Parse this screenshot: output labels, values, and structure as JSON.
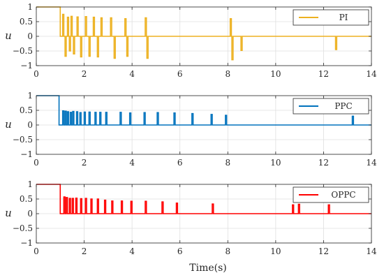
{
  "chart_data": [
    {
      "type": "line",
      "ylabel": "u",
      "xlabel": "",
      "xlim": [
        0,
        14
      ],
      "ylim": [
        -1,
        1
      ],
      "xticks": [
        "0",
        "2",
        "4",
        "6",
        "8",
        "10",
        "12",
        "14"
      ],
      "yticks": [
        "1",
        "0.5",
        "0",
        "−0.5",
        "−1"
      ],
      "grid": true,
      "legend_position": "top-right",
      "series": [
        {
          "name": "PI",
          "color": "#EDB120",
          "initial": {
            "x": [
              0,
              1.0
            ],
            "y": 1
          },
          "baseline": 0,
          "pulses": [
            {
              "x": 1.1,
              "y": 0.75
            },
            {
              "x": 1.2,
              "y": -0.68
            },
            {
              "x": 1.3,
              "y": 0.65
            },
            {
              "x": 1.38,
              "y": -0.5
            },
            {
              "x": 1.45,
              "y": 0.68
            },
            {
              "x": 1.55,
              "y": -0.6
            },
            {
              "x": 1.7,
              "y": 0.66
            },
            {
              "x": 1.85,
              "y": -0.7
            },
            {
              "x": 2.05,
              "y": 0.67
            },
            {
              "x": 2.2,
              "y": -0.68
            },
            {
              "x": 2.38,
              "y": 0.65
            },
            {
              "x": 2.55,
              "y": -0.7
            },
            {
              "x": 2.7,
              "y": 0.63
            },
            {
              "x": 3.1,
              "y": 0.63
            },
            {
              "x": 3.25,
              "y": -0.75
            },
            {
              "x": 3.7,
              "y": 0.6
            },
            {
              "x": 3.78,
              "y": -0.68
            },
            {
              "x": 4.55,
              "y": 0.63
            },
            {
              "x": 4.62,
              "y": -0.75
            },
            {
              "x": 8.1,
              "y": 0.6
            },
            {
              "x": 8.17,
              "y": -0.8
            },
            {
              "x": 8.55,
              "y": -0.48
            },
            {
              "x": 12.5,
              "y": -0.45
            }
          ]
        },
        {
          "name": "PPC",
          "color": "#0072BD",
          "initial": {
            "x": [
              0,
              0.95
            ],
            "y": 1
          },
          "baseline": 0,
          "pulses": [
            {
              "x": 1.1,
              "y": 0.48
            },
            {
              "x": 1.2,
              "y": 0.47
            },
            {
              "x": 1.3,
              "y": 0.45
            },
            {
              "x": 1.42,
              "y": 0.43
            },
            {
              "x": 1.52,
              "y": 0.46
            },
            {
              "x": 1.68,
              "y": 0.45
            },
            {
              "x": 1.82,
              "y": 0.42
            },
            {
              "x": 2.0,
              "y": 0.44
            },
            {
              "x": 2.2,
              "y": 0.44
            },
            {
              "x": 2.45,
              "y": 0.43
            },
            {
              "x": 2.65,
              "y": 0.43
            },
            {
              "x": 2.9,
              "y": 0.43
            },
            {
              "x": 3.5,
              "y": 0.43
            },
            {
              "x": 3.9,
              "y": 0.41
            },
            {
              "x": 4.5,
              "y": 0.42
            },
            {
              "x": 5.05,
              "y": 0.42
            },
            {
              "x": 5.75,
              "y": 0.41
            },
            {
              "x": 6.5,
              "y": 0.39
            },
            {
              "x": 7.3,
              "y": 0.36
            },
            {
              "x": 7.9,
              "y": 0.33
            },
            {
              "x": 13.2,
              "y": 0.3
            }
          ]
        },
        {
          "name": "OPPC",
          "color": "#FF0000",
          "initial": {
            "x": [
              0,
              1.0
            ],
            "y": 1
          },
          "baseline": 0,
          "pulses": [
            {
              "x": 1.15,
              "y": 0.57
            },
            {
              "x": 1.25,
              "y": 0.55
            },
            {
              "x": 1.38,
              "y": 0.52
            },
            {
              "x": 1.5,
              "y": 0.52
            },
            {
              "x": 1.65,
              "y": 0.53
            },
            {
              "x": 1.85,
              "y": 0.51
            },
            {
              "x": 2.05,
              "y": 0.52
            },
            {
              "x": 2.28,
              "y": 0.5
            },
            {
              "x": 2.55,
              "y": 0.5
            },
            {
              "x": 2.85,
              "y": 0.46
            },
            {
              "x": 3.15,
              "y": 0.43
            },
            {
              "x": 3.55,
              "y": 0.43
            },
            {
              "x": 3.95,
              "y": 0.42
            },
            {
              "x": 4.55,
              "y": 0.42
            },
            {
              "x": 5.25,
              "y": 0.4
            },
            {
              "x": 5.85,
              "y": 0.36
            },
            {
              "x": 7.35,
              "y": 0.33
            },
            {
              "x": 10.7,
              "y": 0.3
            },
            {
              "x": 10.95,
              "y": 0.32
            },
            {
              "x": 12.2,
              "y": 0.3
            }
          ]
        }
      ]
    }
  ],
  "figure": {
    "xlabel": "Time(s)"
  }
}
